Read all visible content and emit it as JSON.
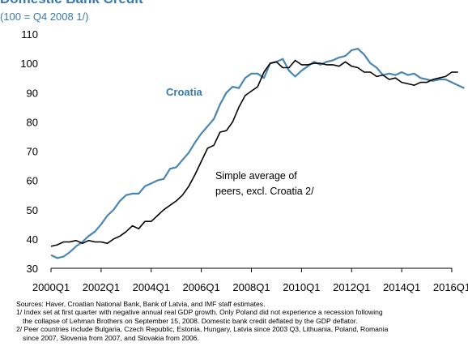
{
  "header": {
    "title": "Domestic Bank Credit",
    "subtitle": "(100 = Q4 2008 1/)"
  },
  "chart_data": {
    "type": "line",
    "title": "Domestic Bank Credit",
    "subtitle": "(100 = Q4 2008 1/)",
    "xlabel": "",
    "ylabel": "",
    "ylim": [
      30,
      110
    ],
    "yticks": [
      30,
      40,
      50,
      60,
      70,
      80,
      90,
      100,
      110
    ],
    "xticks": [
      "2000Q1",
      "2002Q1",
      "2004Q1",
      "2006Q1",
      "2008Q1",
      "2010Q1",
      "2012Q1",
      "2014Q1",
      "2016Q1"
    ],
    "grid": false,
    "legend": "none",
    "series": [
      {
        "name": "Croatia",
        "color": "#4a86b4",
        "values": [
          34.5,
          33.5,
          34,
          35.5,
          37.5,
          39,
          41,
          42.5,
          45,
          48,
          50,
          53,
          55,
          55.5,
          55.5,
          58,
          59,
          60,
          60.5,
          64,
          64.5,
          67,
          69.5,
          73,
          76,
          78.5,
          81,
          86,
          90,
          92,
          91.5,
          95,
          96.5,
          96.5,
          95,
          100,
          100.5,
          101.5,
          97.5,
          95.5,
          97.5,
          99,
          100.5,
          99.5,
          100.5,
          101,
          102,
          102.5,
          104.5,
          105,
          103,
          100,
          98.5,
          96,
          96.5,
          96,
          97,
          96,
          96.5,
          95,
          94.5,
          94,
          94.5,
          94.5,
          93.5,
          92.5,
          91.5
        ]
      },
      {
        "name": "Simple average of peers, excl. Croatia 2/",
        "color": "#000000",
        "values": [
          37.5,
          38,
          39,
          39,
          39.5,
          38.5,
          39.5,
          39,
          39,
          38.5,
          40,
          41,
          42.5,
          44.5,
          43.5,
          46,
          46,
          48,
          50,
          51.5,
          53,
          55,
          58,
          62,
          66.5,
          71,
          72,
          76.5,
          77,
          80,
          85,
          89,
          90.5,
          92,
          97,
          100,
          100.5,
          98.5,
          98.5,
          101,
          99.5,
          99.5,
          100,
          100,
          99.5,
          99.5,
          99,
          100.5,
          99,
          98.5,
          97,
          97,
          95.5,
          96,
          94.5,
          95,
          93.5,
          93,
          92.5,
          93.5,
          93.5,
          94.5,
          95,
          95.5,
          97,
          97
        ]
      }
    ],
    "annotations": [
      "Croatia",
      "Simple average of",
      "peers, excl. Croatia  2/"
    ]
  },
  "notes": {
    "sources": "Sources: Haver, Croatian National Bank, Bank of Latvia, and IMF staff estimates.",
    "note1_line1": "1/ Index set at first quarter with negative annual real GDP growth. Only Poland did not experience a recession following",
    "note1_line2": "the collapse of Lehman Brothers on September 15, 2008. Domestic bank credit deflated by the GDP deflator.",
    "note2_line1": "2/ Peer countries include Bulgaria, Czech Republic, Estonia, Hungary, Latvia since 2003 Q3, Lithuania, Poland, Romania",
    "note2_line2": "since 2007, Slovenia from 2007, and Slovakia from 2006."
  }
}
